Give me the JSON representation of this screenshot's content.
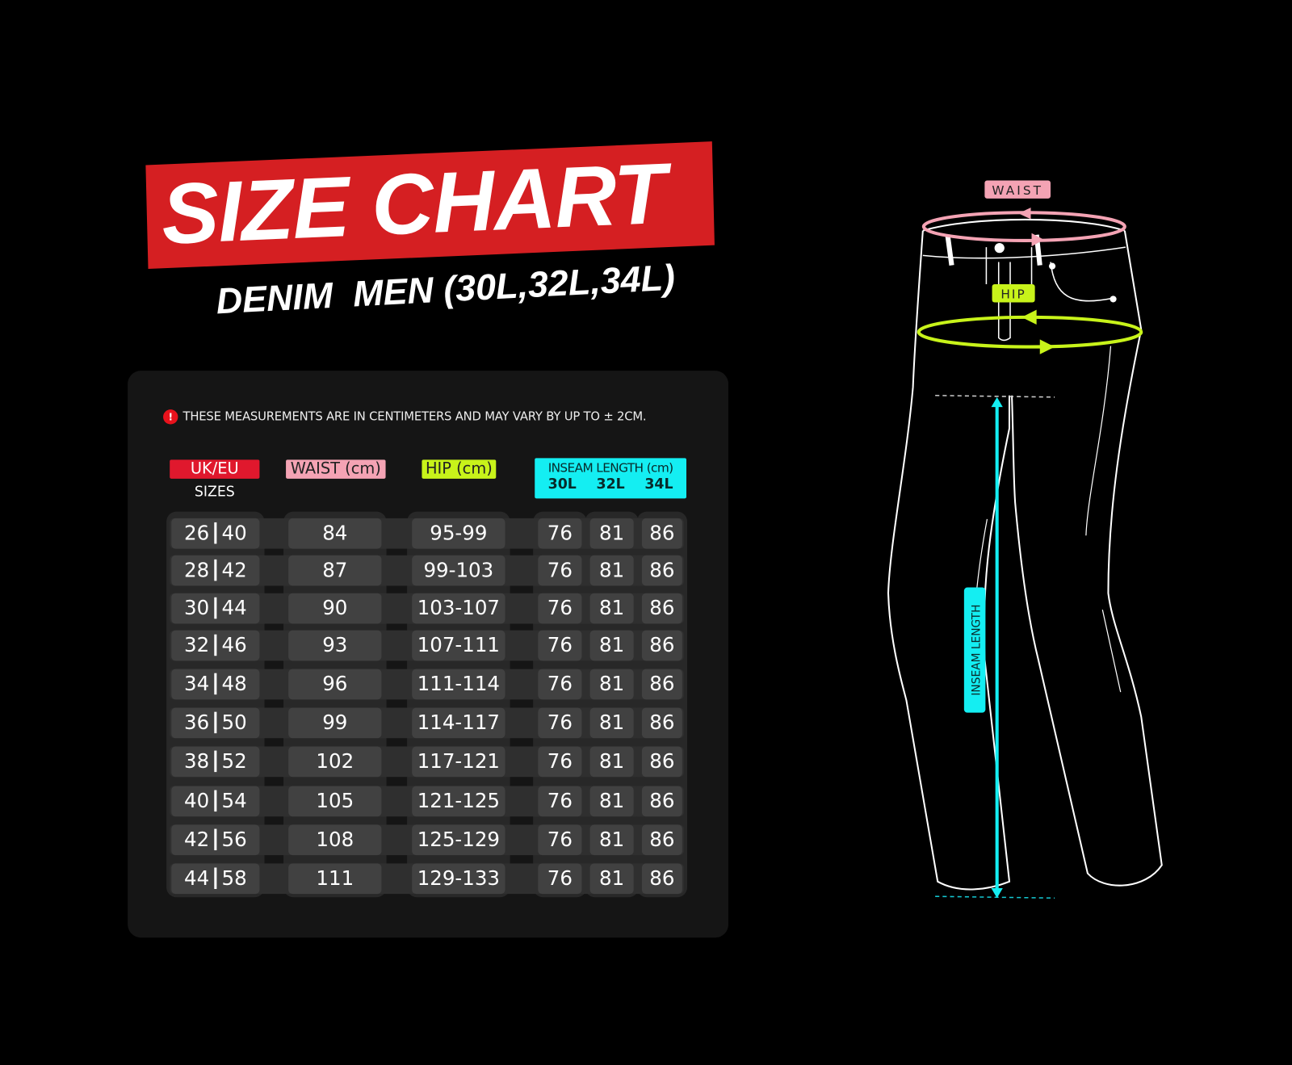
{
  "header": {
    "title": "SIZE CHART",
    "subtitle": "DENIM  MEN (30L,32L,34L)"
  },
  "note": {
    "icon": "exclamation-icon",
    "text": "THESE MEASUREMENTS ARE IN CENTIMETERS AND MAY  VARY BY UP TO ± 2CM."
  },
  "table": {
    "headers": {
      "size": "UK/EU",
      "size_sub": "SIZES",
      "waist": "WAIST (cm)",
      "hip": "HIP (cm)",
      "inseam": "INSEAM LENGTH (cm)",
      "inseam_cols": [
        "30L",
        "32L",
        "34L"
      ]
    },
    "rows": [
      {
        "uk": "26",
        "eu": "40",
        "waist": "84",
        "hip": "95-99",
        "l30": "76",
        "l32": "81",
        "l34": "86"
      },
      {
        "uk": "28",
        "eu": "42",
        "waist": "87",
        "hip": "99-103",
        "l30": "76",
        "l32": "81",
        "l34": "86"
      },
      {
        "uk": "30",
        "eu": "44",
        "waist": "90",
        "hip": "103-107",
        "l30": "76",
        "l32": "81",
        "l34": "86"
      },
      {
        "uk": "32",
        "eu": "46",
        "waist": "93",
        "hip": "107-111",
        "l30": "76",
        "l32": "81",
        "l34": "86"
      },
      {
        "uk": "34",
        "eu": "48",
        "waist": "96",
        "hip": "111-114",
        "l30": "76",
        "l32": "81",
        "l34": "86"
      },
      {
        "uk": "36",
        "eu": "50",
        "waist": "99",
        "hip": "114-117",
        "l30": "76",
        "l32": "81",
        "l34": "86"
      },
      {
        "uk": "38",
        "eu": "52",
        "waist": "102",
        "hip": "117-121",
        "l30": "76",
        "l32": "81",
        "l34": "86"
      },
      {
        "uk": "40",
        "eu": "54",
        "waist": "105",
        "hip": "121-125",
        "l30": "76",
        "l32": "81",
        "l34": "86"
      },
      {
        "uk": "42",
        "eu": "56",
        "waist": "108",
        "hip": "125-129",
        "l30": "76",
        "l32": "81",
        "l34": "86"
      },
      {
        "uk": "44",
        "eu": "58",
        "waist": "111",
        "hip": "129-133",
        "l30": "76",
        "l32": "81",
        "l34": "86"
      }
    ]
  },
  "diagram": {
    "waist_label": "WAIST",
    "hip_label": "HIP",
    "inseam_label": "INSEAM  LENGTH"
  },
  "colors": {
    "banner": "#d51f22",
    "size_header": "#e0182d",
    "waist": "#f4a3b4",
    "hip": "#c8f31a",
    "inseam": "#14eef2"
  }
}
